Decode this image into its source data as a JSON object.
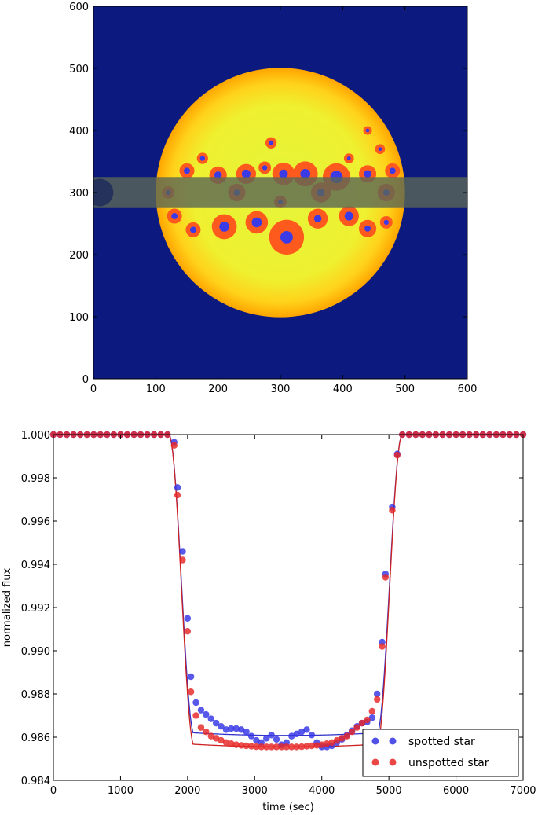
{
  "chart_data": [
    {
      "type": "heatmap",
      "title": "",
      "xlabel": "",
      "ylabel": "",
      "xlim": [
        0,
        600
      ],
      "ylim": [
        0,
        600
      ],
      "xticks": [
        "0",
        "100",
        "200",
        "300",
        "400",
        "500",
        "600"
      ],
      "yticks": [
        "0",
        "100",
        "200",
        "300",
        "400",
        "500",
        "600"
      ],
      "background_color": "#0c1a80",
      "star": {
        "cx": 300,
        "cy": 300,
        "r": 200,
        "limb_color": "#ffb400",
        "center_color": "#e6f53a"
      },
      "transit_band": {
        "y_min": 275,
        "y_max": 325,
        "color": "#5a6655"
      },
      "planet": {
        "cx": 10,
        "cy": 300,
        "r": 22
      },
      "spots": [
        {
          "x": 310,
          "y": 228,
          "r": 28,
          "umbra": 10
        },
        {
          "x": 262,
          "y": 252,
          "r": 18,
          "umbra": 8
        },
        {
          "x": 210,
          "y": 245,
          "r": 20,
          "umbra": 8
        },
        {
          "x": 360,
          "y": 258,
          "r": 16,
          "umbra": 6
        },
        {
          "x": 410,
          "y": 262,
          "r": 16,
          "umbra": 7
        },
        {
          "x": 440,
          "y": 242,
          "r": 14,
          "umbra": 5
        },
        {
          "x": 470,
          "y": 252,
          "r": 10,
          "umbra": 4
        },
        {
          "x": 160,
          "y": 240,
          "r": 12,
          "umbra": 5
        },
        {
          "x": 130,
          "y": 262,
          "r": 12,
          "umbra": 5
        },
        {
          "x": 390,
          "y": 325,
          "r": 22,
          "umbra": 10
        },
        {
          "x": 340,
          "y": 330,
          "r": 20,
          "umbra": 8
        },
        {
          "x": 305,
          "y": 330,
          "r": 18,
          "umbra": 7
        },
        {
          "x": 245,
          "y": 330,
          "r": 16,
          "umbra": 7
        },
        {
          "x": 200,
          "y": 328,
          "r": 14,
          "umbra": 6
        },
        {
          "x": 150,
          "y": 335,
          "r": 12,
          "umbra": 5
        },
        {
          "x": 440,
          "y": 330,
          "r": 14,
          "umbra": 6
        },
        {
          "x": 480,
          "y": 335,
          "r": 12,
          "umbra": 5
        },
        {
          "x": 275,
          "y": 340,
          "r": 10,
          "umbra": 4
        },
        {
          "x": 175,
          "y": 355,
          "r": 9,
          "umbra": 4
        },
        {
          "x": 460,
          "y": 370,
          "r": 8,
          "umbra": 3
        },
        {
          "x": 410,
          "y": 355,
          "r": 8,
          "umbra": 3
        },
        {
          "x": 285,
          "y": 380,
          "r": 9,
          "umbra": 4
        },
        {
          "x": 440,
          "y": 400,
          "r": 7,
          "umbra": 3
        },
        {
          "x": 365,
          "y": 300,
          "r": 16,
          "umbra": 6
        },
        {
          "x": 230,
          "y": 300,
          "r": 14,
          "umbra": 5
        },
        {
          "x": 470,
          "y": 300,
          "r": 14,
          "umbra": 5
        },
        {
          "x": 120,
          "y": 300,
          "r": 10,
          "umbra": 4
        },
        {
          "x": 300,
          "y": 285,
          "r": 10,
          "umbra": 4
        }
      ]
    },
    {
      "type": "scatter",
      "title": "",
      "xlabel": "time (sec)",
      "ylabel": "normalized flux",
      "xlim": [
        0,
        7000
      ],
      "ylim": [
        0.984,
        1.0
      ],
      "xticks": [
        "0",
        "1000",
        "2000",
        "3000",
        "4000",
        "5000",
        "6000",
        "7000"
      ],
      "yticks": [
        "0.984",
        "0.986",
        "0.988",
        "0.990",
        "0.992",
        "0.994",
        "0.996",
        "0.998",
        "1.000"
      ],
      "legend": {
        "position": "lower-right"
      },
      "series": [
        {
          "name": "spotted star",
          "color": "#3333e6",
          "x": [
            0,
            100,
            200,
            300,
            400,
            500,
            600,
            700,
            800,
            900,
            1000,
            1100,
            1200,
            1300,
            1400,
            1500,
            1600,
            1700,
            1800,
            1850,
            1925,
            2000,
            2050,
            2125,
            2200,
            2275,
            2350,
            2425,
            2500,
            2575,
            2650,
            2725,
            2800,
            2875,
            2950,
            3025,
            3100,
            3175,
            3250,
            3325,
            3400,
            3475,
            3550,
            3625,
            3700,
            3775,
            3850,
            3925,
            4000,
            4075,
            4150,
            4225,
            4300,
            4375,
            4450,
            4525,
            4600,
            4675,
            4750,
            4825,
            4900,
            4950,
            5050,
            5125,
            5200,
            5300,
            5400,
            5500,
            5600,
            5700,
            5800,
            5900,
            6000,
            6100,
            6200,
            6300,
            6400,
            6500,
            6600,
            6700,
            6800,
            6900,
            7000
          ],
          "y": [
            1.0,
            1.0,
            1.0,
            1.0,
            1.0,
            1.0,
            1.0,
            1.0,
            1.0,
            1.0,
            1.0,
            1.0,
            1.0,
            1.0,
            1.0,
            1.0,
            1.0,
            1.0,
            0.99965,
            0.99755,
            0.9946,
            0.9915,
            0.9888,
            0.9876,
            0.98725,
            0.98705,
            0.98685,
            0.98665,
            0.9865,
            0.98635,
            0.9864,
            0.9864,
            0.98635,
            0.98625,
            0.98605,
            0.98585,
            0.98575,
            0.98595,
            0.9861,
            0.9859,
            0.98565,
            0.98575,
            0.98605,
            0.98615,
            0.98625,
            0.98635,
            0.9861,
            0.98575,
            0.98555,
            0.98555,
            0.9856,
            0.98575,
            0.9859,
            0.9861,
            0.9863,
            0.9865,
            0.98665,
            0.9867,
            0.9869,
            0.988,
            0.9904,
            0.99355,
            0.99665,
            0.9991,
            1.0,
            1.0,
            1.0,
            1.0,
            1.0,
            1.0,
            1.0,
            1.0,
            1.0,
            1.0,
            1.0,
            1.0,
            1.0,
            1.0,
            1.0,
            1.0,
            1.0,
            1.0,
            1.0
          ]
        },
        {
          "name": "unspotted star",
          "color": "#e62626",
          "x": [
            0,
            100,
            200,
            300,
            400,
            500,
            600,
            700,
            800,
            900,
            1000,
            1100,
            1200,
            1300,
            1400,
            1500,
            1600,
            1700,
            1800,
            1850,
            1925,
            2000,
            2050,
            2125,
            2200,
            2275,
            2350,
            2425,
            2500,
            2575,
            2650,
            2725,
            2800,
            2875,
            2950,
            3025,
            3100,
            3175,
            3250,
            3325,
            3400,
            3475,
            3550,
            3625,
            3700,
            3775,
            3850,
            3925,
            4000,
            4075,
            4150,
            4225,
            4300,
            4375,
            4450,
            4525,
            4600,
            4675,
            4750,
            4825,
            4900,
            4950,
            5050,
            5125,
            5200,
            5300,
            5400,
            5500,
            5600,
            5700,
            5800,
            5900,
            6000,
            6100,
            6200,
            6300,
            6400,
            6500,
            6600,
            6700,
            6800,
            6900,
            7000
          ],
          "y": [
            1.0,
            1.0,
            1.0,
            1.0,
            1.0,
            1.0,
            1.0,
            1.0,
            1.0,
            1.0,
            1.0,
            1.0,
            1.0,
            1.0,
            1.0,
            1.0,
            1.0,
            1.0,
            0.9995,
            0.9972,
            0.9942,
            0.9909,
            0.9881,
            0.987,
            0.98645,
            0.98625,
            0.98605,
            0.98595,
            0.98585,
            0.98575,
            0.9857,
            0.98565,
            0.98562,
            0.9856,
            0.98558,
            0.98556,
            0.98555,
            0.98555,
            0.98555,
            0.98555,
            0.98555,
            0.98555,
            0.98555,
            0.98555,
            0.98556,
            0.98558,
            0.9856,
            0.98562,
            0.98565,
            0.9857,
            0.98575,
            0.98585,
            0.98595,
            0.98605,
            0.98625,
            0.98645,
            0.98665,
            0.9868,
            0.9872,
            0.98775,
            0.9902,
            0.9934,
            0.9965,
            0.99905,
            1.0,
            1.0,
            1.0,
            1.0,
            1.0,
            1.0,
            1.0,
            1.0,
            1.0,
            1.0,
            1.0,
            1.0,
            1.0,
            1.0,
            1.0,
            1.0,
            1.0,
            1.0,
            1.0
          ]
        }
      ],
      "model_curves": [
        {
          "name": "spotted model",
          "color": "#3333cc",
          "floor": 0.98608
        },
        {
          "name": "unspotted model",
          "color": "#cc2222",
          "floor": 0.98555
        }
      ],
      "ingress": {
        "start": 1720,
        "end": 2100
      },
      "egress": {
        "start": 4820,
        "end": 5200
      }
    }
  ]
}
